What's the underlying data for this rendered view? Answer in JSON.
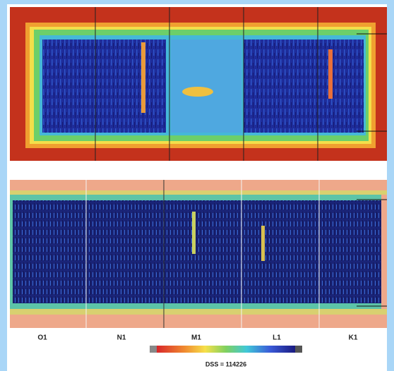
{
  "figure": {
    "labels": [
      "O1",
      "N1",
      "M1",
      "L1",
      "K1"
    ],
    "caption": "DSS = 114226"
  }
}
